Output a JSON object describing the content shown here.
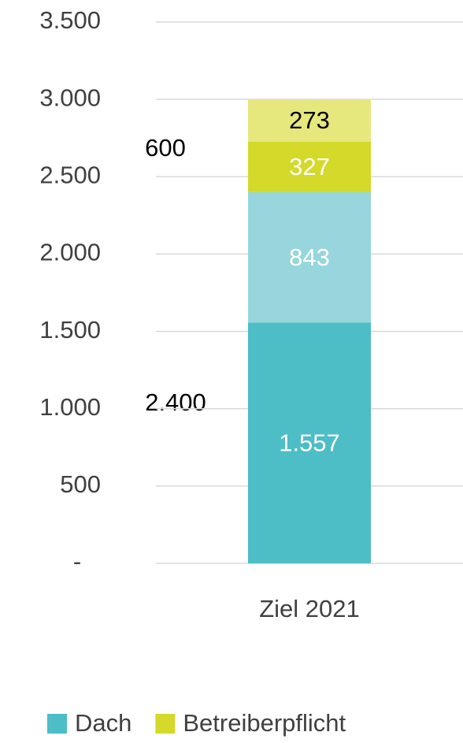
{
  "chart_data": {
    "type": "stacked_bar",
    "categories": [
      "Ziel 2021"
    ],
    "series": [
      {
        "name": "Dach",
        "color": "#4dbdc6",
        "label_color": "#ffffff",
        "values": [
          1557
        ],
        "value_labels": [
          "1.557"
        ]
      },
      {
        "color": "#96d6dc",
        "label_color": "#ffffff",
        "values": [
          843
        ]
      },
      {
        "name": "Betreiberpflicht",
        "color": "#d4d92a",
        "label_color": "#ffffff",
        "values": [
          327
        ]
      },
      {
        "color": "#e6e87e",
        "label_color": "#000000",
        "values": [
          273
        ]
      }
    ],
    "annotations": [
      "2.400",
      "600"
    ],
    "ylim": [
      0,
      3500
    ],
    "yticks": [
      {
        "value": 0,
        "label": "-"
      },
      500,
      {
        "value": 1000,
        "label": "1.000"
      },
      {
        "value": 1500,
        "label": "1.500"
      },
      {
        "value": 2000,
        "label": "2.000"
      },
      {
        "value": 2500,
        "label": "2.500"
      },
      {
        "value": 3000,
        "label": "3.000"
      },
      {
        "value": 3500,
        "label": "3.500"
      }
    ],
    "grid": true,
    "legend": "bottom"
  }
}
